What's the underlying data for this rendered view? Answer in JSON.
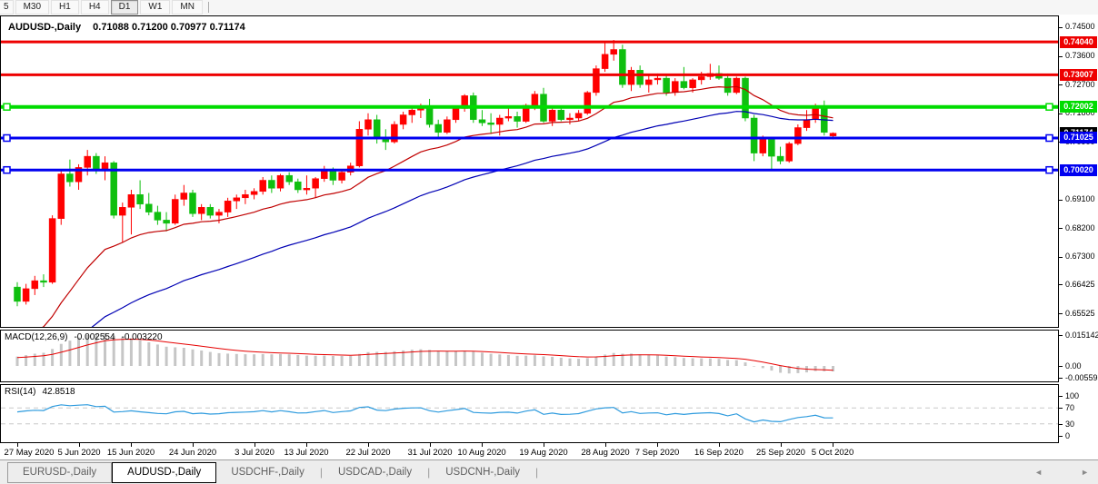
{
  "toolbar": {
    "timeframes": [
      "5",
      "M30",
      "H1",
      "H4",
      "D1",
      "W1",
      "MN"
    ],
    "active_timeframe": "D1"
  },
  "chart_header": {
    "symbol_label": "AUDUSD-,Daily",
    "ohlc_values": "0.71088 0.71200 0.70977 0.71174"
  },
  "chart_data": {
    "type": "candlestick",
    "title": "AUDUSD-,Daily",
    "symbol": "AUDUSD",
    "period": "Daily",
    "current_ohlc": {
      "open": 0.71088,
      "high": 0.712,
      "low": 0.70977,
      "close": 0.71174
    },
    "y_range": [
      0.651,
      0.7484
    ],
    "y_axis_ticks": [
      "0.74500",
      "0.73600",
      "0.72700",
      "0.71800",
      "0.70900",
      "0.69100",
      "0.68200",
      "0.67300",
      "0.66425",
      "0.65525"
    ],
    "current_price_label": {
      "price": 0.71174,
      "label": "0.71174",
      "bg": "#000000",
      "text_color": "#ffffff"
    },
    "horizontal_lines": [
      {
        "price": 0.7404,
        "label": "0.74040",
        "color": "#ee0000",
        "thickness": 3,
        "handles": false
      },
      {
        "price": 0.73007,
        "label": "0.73007",
        "color": "#ee0000",
        "thickness": 3,
        "handles": false
      },
      {
        "price": 0.72002,
        "label": "0.72002",
        "color": "#00dc00",
        "thickness": 4,
        "handles": true
      },
      {
        "price": 0.71025,
        "label": "0.71025",
        "color": "#0000f0",
        "thickness": 3,
        "handles": true
      },
      {
        "price": 0.7002,
        "label": "0.70020",
        "color": "#0000f0",
        "thickness": 3,
        "handles": true
      }
    ],
    "x_ticks": [
      {
        "bar": 0,
        "label": "27 May 2020"
      },
      {
        "bar": 7,
        "label": "5 Jun 2020"
      },
      {
        "bar": 13,
        "label": "15 Jun 2020"
      },
      {
        "bar": 20,
        "label": "24 Jun 2020"
      },
      {
        "bar": 27,
        "label": "3 Jul 2020"
      },
      {
        "bar": 33,
        "label": "13 Jul 2020"
      },
      {
        "bar": 40,
        "label": "22 Jul 2020"
      },
      {
        "bar": 47,
        "label": "31 Jul 2020"
      },
      {
        "bar": 53,
        "label": "10 Aug 2020"
      },
      {
        "bar": 60,
        "label": "19 Aug 2020"
      },
      {
        "bar": 67,
        "label": "28 Aug 2020"
      },
      {
        "bar": 73,
        "label": "7 Sep 2020"
      },
      {
        "bar": 80,
        "label": "16 Sep 2020"
      },
      {
        "bar": 87,
        "label": "25 Sep 2020"
      },
      {
        "bar": 93,
        "label": "5 Oct 2020"
      }
    ],
    "candles": [
      [
        0.6635,
        0.665,
        0.6575,
        0.659
      ],
      [
        0.659,
        0.6645,
        0.658,
        0.663
      ],
      [
        0.663,
        0.667,
        0.661,
        0.6655
      ],
      [
        0.6655,
        0.6675,
        0.6635,
        0.665
      ],
      [
        0.665,
        0.686,
        0.6645,
        0.685
      ],
      [
        0.685,
        0.7,
        0.683,
        0.699
      ],
      [
        0.699,
        0.7035,
        0.695,
        0.6965
      ],
      [
        0.6965,
        0.702,
        0.694,
        0.701
      ],
      [
        0.701,
        0.7065,
        0.6985,
        0.7045
      ],
      [
        0.7045,
        0.7055,
        0.699,
        0.7
      ],
      [
        0.7,
        0.7045,
        0.697,
        0.7025
      ],
      [
        0.7025,
        0.703,
        0.685,
        0.686
      ],
      [
        0.686,
        0.69,
        0.6775,
        0.6885
      ],
      [
        0.6885,
        0.694,
        0.68,
        0.6925
      ],
      [
        0.6925,
        0.697,
        0.688,
        0.6895
      ],
      [
        0.6895,
        0.693,
        0.686,
        0.687
      ],
      [
        0.687,
        0.689,
        0.683,
        0.6845
      ],
      [
        0.6845,
        0.687,
        0.681,
        0.6835
      ],
      [
        0.6835,
        0.6925,
        0.683,
        0.691
      ],
      [
        0.691,
        0.6955,
        0.689,
        0.693
      ],
      [
        0.693,
        0.694,
        0.6855,
        0.6865
      ],
      [
        0.6865,
        0.6895,
        0.6845,
        0.6885
      ],
      [
        0.6885,
        0.6895,
        0.685,
        0.686
      ],
      [
        0.686,
        0.688,
        0.6835,
        0.687
      ],
      [
        0.687,
        0.6915,
        0.6855,
        0.6905
      ],
      [
        0.6905,
        0.6925,
        0.688,
        0.6915
      ],
      [
        0.6915,
        0.694,
        0.6895,
        0.6925
      ],
      [
        0.6925,
        0.6945,
        0.691,
        0.6935
      ],
      [
        0.6935,
        0.698,
        0.6925,
        0.697
      ],
      [
        0.697,
        0.6985,
        0.693,
        0.6945
      ],
      [
        0.6945,
        0.699,
        0.6935,
        0.6985
      ],
      [
        0.6985,
        0.6995,
        0.6955,
        0.6965
      ],
      [
        0.6965,
        0.6975,
        0.693,
        0.694
      ],
      [
        0.694,
        0.6985,
        0.6925,
        0.6945
      ],
      [
        0.6945,
        0.698,
        0.6915,
        0.6975
      ],
      [
        0.6975,
        0.7015,
        0.6965,
        0.7005
      ],
      [
        0.7005,
        0.701,
        0.6955,
        0.697
      ],
      [
        0.697,
        0.7005,
        0.696,
        0.6995
      ],
      [
        0.6995,
        0.7025,
        0.6985,
        0.7015
      ],
      [
        0.7015,
        0.7155,
        0.701,
        0.713
      ],
      [
        0.713,
        0.718,
        0.711,
        0.716
      ],
      [
        0.716,
        0.7175,
        0.7085,
        0.71
      ],
      [
        0.71,
        0.713,
        0.7065,
        0.709
      ],
      [
        0.709,
        0.7155,
        0.7085,
        0.7145
      ],
      [
        0.7145,
        0.7185,
        0.713,
        0.7175
      ],
      [
        0.7175,
        0.72,
        0.715,
        0.719
      ],
      [
        0.719,
        0.721,
        0.7165,
        0.7195
      ],
      [
        0.7195,
        0.7225,
        0.7135,
        0.7145
      ],
      [
        0.7145,
        0.716,
        0.7105,
        0.712
      ],
      [
        0.712,
        0.717,
        0.7115,
        0.716
      ],
      [
        0.716,
        0.7205,
        0.715,
        0.7195
      ],
      [
        0.7195,
        0.724,
        0.7185,
        0.7235
      ],
      [
        0.7235,
        0.7245,
        0.715,
        0.716
      ],
      [
        0.716,
        0.719,
        0.714,
        0.715
      ],
      [
        0.715,
        0.718,
        0.7115,
        0.7145
      ],
      [
        0.7145,
        0.7175,
        0.711,
        0.7165
      ],
      [
        0.7165,
        0.72,
        0.7155,
        0.717
      ],
      [
        0.717,
        0.7185,
        0.7135,
        0.7155
      ],
      [
        0.7155,
        0.721,
        0.715,
        0.7205
      ],
      [
        0.7205,
        0.725,
        0.719,
        0.724
      ],
      [
        0.724,
        0.726,
        0.715,
        0.7155
      ],
      [
        0.7155,
        0.7195,
        0.714,
        0.719
      ],
      [
        0.719,
        0.7195,
        0.7155,
        0.716
      ],
      [
        0.716,
        0.718,
        0.7145,
        0.7165
      ],
      [
        0.7165,
        0.719,
        0.7155,
        0.718
      ],
      [
        0.718,
        0.725,
        0.7175,
        0.7245
      ],
      [
        0.7245,
        0.733,
        0.7235,
        0.732
      ],
      [
        0.732,
        0.7405,
        0.731,
        0.7365
      ],
      [
        0.7365,
        0.741,
        0.7345,
        0.738
      ],
      [
        0.738,
        0.7395,
        0.726,
        0.727
      ],
      [
        0.727,
        0.7325,
        0.725,
        0.7315
      ],
      [
        0.7315,
        0.733,
        0.726,
        0.727
      ],
      [
        0.727,
        0.73,
        0.7245,
        0.7285
      ],
      [
        0.7285,
        0.7305,
        0.727,
        0.729
      ],
      [
        0.729,
        0.73,
        0.7235,
        0.7245
      ],
      [
        0.7245,
        0.729,
        0.7235,
        0.728
      ],
      [
        0.728,
        0.7325,
        0.7255,
        0.726
      ],
      [
        0.726,
        0.729,
        0.7245,
        0.7285
      ],
      [
        0.7285,
        0.731,
        0.727,
        0.7295
      ],
      [
        0.7295,
        0.7335,
        0.7285,
        0.7305
      ],
      [
        0.7305,
        0.733,
        0.7285,
        0.729
      ],
      [
        0.729,
        0.7305,
        0.7235,
        0.7245
      ],
      [
        0.7245,
        0.7295,
        0.724,
        0.729
      ],
      [
        0.729,
        0.7295,
        0.7155,
        0.7165
      ],
      [
        0.7165,
        0.7175,
        0.703,
        0.7055
      ],
      [
        0.7055,
        0.711,
        0.7045,
        0.71
      ],
      [
        0.71,
        0.7105,
        0.7,
        0.7045
      ],
      [
        0.7045,
        0.7075,
        0.702,
        0.703
      ],
      [
        0.703,
        0.709,
        0.7025,
        0.7085
      ],
      [
        0.7085,
        0.7145,
        0.708,
        0.7135
      ],
      [
        0.7135,
        0.719,
        0.7125,
        0.716
      ],
      [
        0.716,
        0.721,
        0.715,
        0.72
      ],
      [
        0.72,
        0.722,
        0.711,
        0.712
      ],
      [
        0.71088,
        0.712,
        0.70977,
        0.71174
      ]
    ],
    "colors": {
      "bull": "#ff0000",
      "bear": "#0fbf0f",
      "ma_fast": "#c00000",
      "ma_slow": "#0000b4",
      "macd_histogram": "#c6c6c6",
      "macd_signal": "#e60000",
      "rsi_line": "#2e9bde",
      "level_dashed": "#c8c8c8"
    },
    "macd": {
      "label": "MACD(12,26,9)",
      "value_main": "-0.002554",
      "value_signal": "-0.003220",
      "params": [
        12,
        26,
        9
      ],
      "axis_ticks": [
        {
          "value": 0.015142,
          "label": "0.015142"
        },
        {
          "value": 0.0,
          "label": "0.00"
        },
        {
          "value": -0.005595,
          "label": "-0.005595"
        }
      ],
      "range": [
        -0.005595,
        0.015142
      ]
    },
    "rsi": {
      "label": "RSI(14)",
      "value": "42.8518",
      "period": 14,
      "levels": [
        70,
        30
      ],
      "axis_ticks": [
        {
          "value": 100,
          "label": "100"
        },
        {
          "value": 70,
          "label": "70"
        },
        {
          "value": 30,
          "label": "30"
        },
        {
          "value": 0,
          "label": "0"
        }
      ]
    }
  },
  "tab_bar": {
    "tabs": [
      "EURUSD-,Daily",
      "AUDUSD-,Daily",
      "USDCHF-,Daily",
      "USDCAD-,Daily",
      "USDCNH-,Daily"
    ],
    "active_tab": "AUDUSD-,Daily",
    "scroll_left_icon": "◄",
    "scroll_right_icon": "►"
  }
}
